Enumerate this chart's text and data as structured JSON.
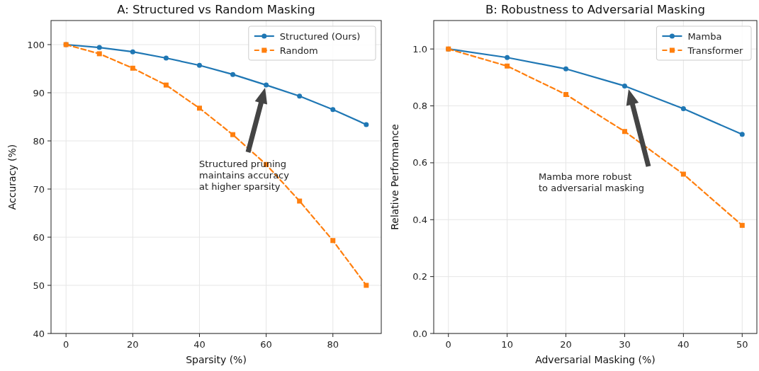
{
  "chart_data": [
    {
      "type": "line",
      "title": "A: Structured vs Random Masking",
      "xlabel": "Sparsity (%)",
      "ylabel": "Accuracy (%)",
      "x": [
        0,
        10,
        20,
        30,
        40,
        50,
        60,
        70,
        80,
        90
      ],
      "xlim": [
        -4.5,
        94.5
      ],
      "xticks": [
        0,
        20,
        40,
        60,
        80
      ],
      "ylim": [
        40,
        105
      ],
      "yticks": [
        40,
        50,
        60,
        70,
        80,
        90,
        100
      ],
      "grid": true,
      "legend": "top right",
      "series": [
        {
          "name": "Structured (Ours)",
          "color": "#1f77b4",
          "marker": "circle",
          "line_style": "solid",
          "values": [
            100,
            99.4,
            98.5,
            97.2,
            95.7,
            93.8,
            91.6,
            89.3,
            86.5,
            83.4
          ]
        },
        {
          "name": "Random",
          "color": "#ff7f0e",
          "marker": "square",
          "line_style": "dashed",
          "values": [
            100,
            98.1,
            95.1,
            91.6,
            86.8,
            81.3,
            75.1,
            67.5,
            59.3,
            50.0
          ]
        }
      ],
      "annotations": [
        "Structured pruning\nmaintains accuracy\nat higher sparsity"
      ]
    },
    {
      "type": "line",
      "title": "B: Robustness to Adversarial Masking",
      "xlabel": "Adversarial Masking (%)",
      "ylabel": "Relative Performance",
      "x": [
        0,
        10,
        20,
        30,
        40,
        50
      ],
      "xlim": [
        -2.5,
        52.5
      ],
      "xticks": [
        0,
        10,
        20,
        30,
        40,
        50
      ],
      "ylim": [
        0,
        1.1
      ],
      "yticks": [
        {
          "value": 0,
          "label": "0.0"
        },
        {
          "value": 0.2,
          "label": "0.2"
        },
        {
          "value": 0.4,
          "label": "0.4"
        },
        {
          "value": 0.6,
          "label": "0.6"
        },
        {
          "value": 0.8,
          "label": "0.8"
        },
        {
          "value": 1,
          "label": "1.0"
        }
      ],
      "grid": true,
      "legend": "top right",
      "series": [
        {
          "name": "Mamba",
          "color": "#1f77b4",
          "marker": "circle",
          "line_style": "solid",
          "values": [
            1.0,
            0.97,
            0.93,
            0.87,
            0.79,
            0.7
          ]
        },
        {
          "name": "Transformer",
          "color": "#ff7f0e",
          "marker": "square",
          "line_style": "dashed",
          "values": [
            1.0,
            0.94,
            0.84,
            0.71,
            0.56,
            0.38
          ]
        }
      ],
      "annotations": [
        "Mamba more robust\nto adversarial masking"
      ]
    }
  ]
}
